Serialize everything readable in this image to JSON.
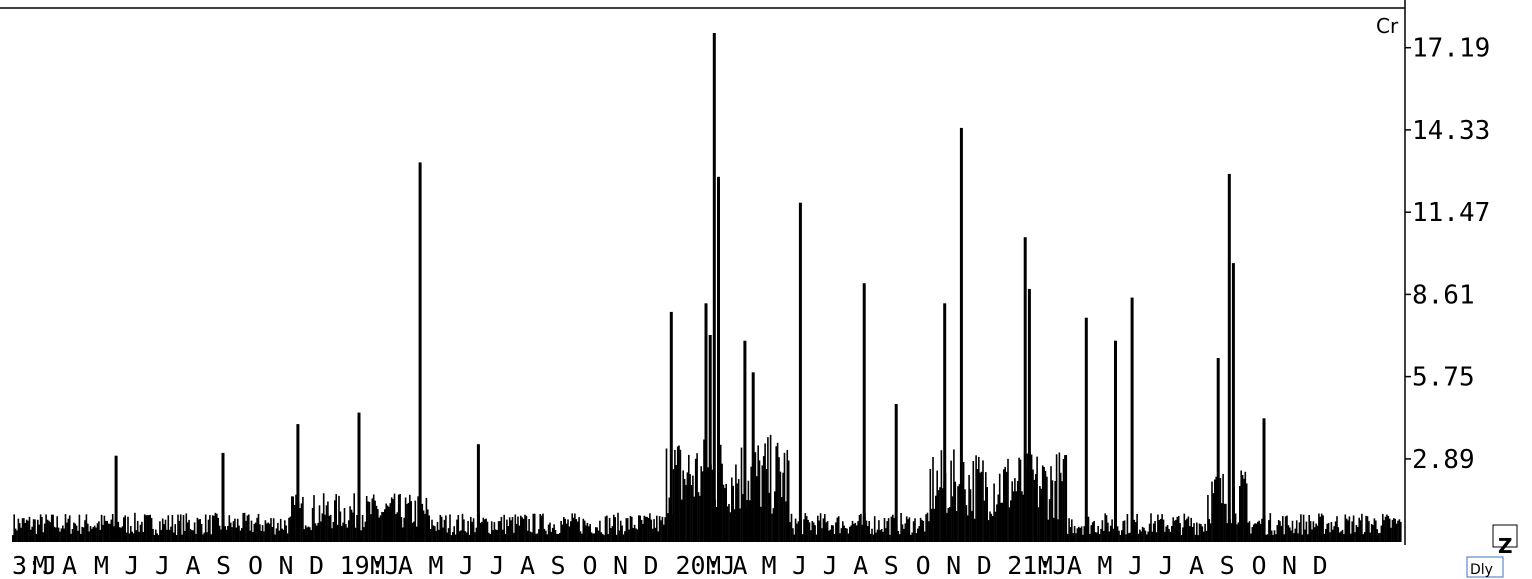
{
  "chart_data": {
    "type": "bar",
    "title": "",
    "corner_label": "Cr",
    "yticks": [
      2.89,
      5.75,
      8.61,
      11.47,
      14.33,
      17.19
    ],
    "ytick_labels": [
      "2.89",
      "5.75",
      "8.61",
      "11.47",
      "14.33",
      "17.19"
    ],
    "ylim": [
      0,
      18.5
    ],
    "xlim": [
      0,
      1000
    ],
    "x_tick_labels": [
      "3:J",
      "M",
      "A",
      "M",
      "J",
      "J",
      "A",
      "S",
      "O",
      "N",
      "D",
      "19:J",
      "M",
      "A",
      "M",
      "J",
      "J",
      "A",
      "S",
      "O",
      "N",
      "D",
      "20:J",
      "M",
      "A",
      "M",
      "J",
      "J",
      "A",
      "S",
      "O",
      "N",
      "D",
      "21:J",
      "M",
      "A",
      "M",
      "J",
      "J",
      "A",
      "S",
      "O",
      "N",
      "D"
    ],
    "x_tick_positions": [
      0,
      15,
      36,
      59,
      81,
      103,
      125,
      147,
      170,
      192,
      214,
      236,
      258,
      278,
      300,
      322,
      344,
      366,
      388,
      411,
      433,
      455,
      478,
      500,
      519,
      540,
      562,
      584,
      606,
      628,
      651,
      673,
      695,
      717,
      739,
      760,
      782,
      804,
      826,
      848,
      870,
      893,
      915,
      937
    ],
    "bars": [
      {
        "x": 75,
        "value": 3.0
      },
      {
        "x": 152,
        "value": 3.1
      },
      {
        "x": 206,
        "value": 4.1
      },
      {
        "x": 250,
        "value": 4.5
      },
      {
        "x": 294,
        "value": 13.2
      },
      {
        "x": 336,
        "value": 3.4
      },
      {
        "x": 475,
        "value": 8.0
      },
      {
        "x": 500,
        "value": 8.3
      },
      {
        "x": 503,
        "value": 7.2
      },
      {
        "x": 506,
        "value": 17.7
      },
      {
        "x": 509,
        "value": 12.7
      },
      {
        "x": 528,
        "value": 7.0
      },
      {
        "x": 534,
        "value": 5.9
      },
      {
        "x": 568,
        "value": 11.8
      },
      {
        "x": 614,
        "value": 9.0
      },
      {
        "x": 637,
        "value": 4.8
      },
      {
        "x": 672,
        "value": 8.3
      },
      {
        "x": 684,
        "value": 14.4
      },
      {
        "x": 730,
        "value": 10.6
      },
      {
        "x": 733,
        "value": 8.8
      },
      {
        "x": 774,
        "value": 7.8
      },
      {
        "x": 795,
        "value": 7.0
      },
      {
        "x": 807,
        "value": 8.5
      },
      {
        "x": 869,
        "value": 6.4
      },
      {
        "x": 877,
        "value": 12.8
      },
      {
        "x": 880,
        "value": 9.7
      },
      {
        "x": 902,
        "value": 4.3
      }
    ],
    "noise_base": 0.6
  },
  "buttons": {
    "zoom_label": "Z",
    "period_label": "Dly"
  }
}
